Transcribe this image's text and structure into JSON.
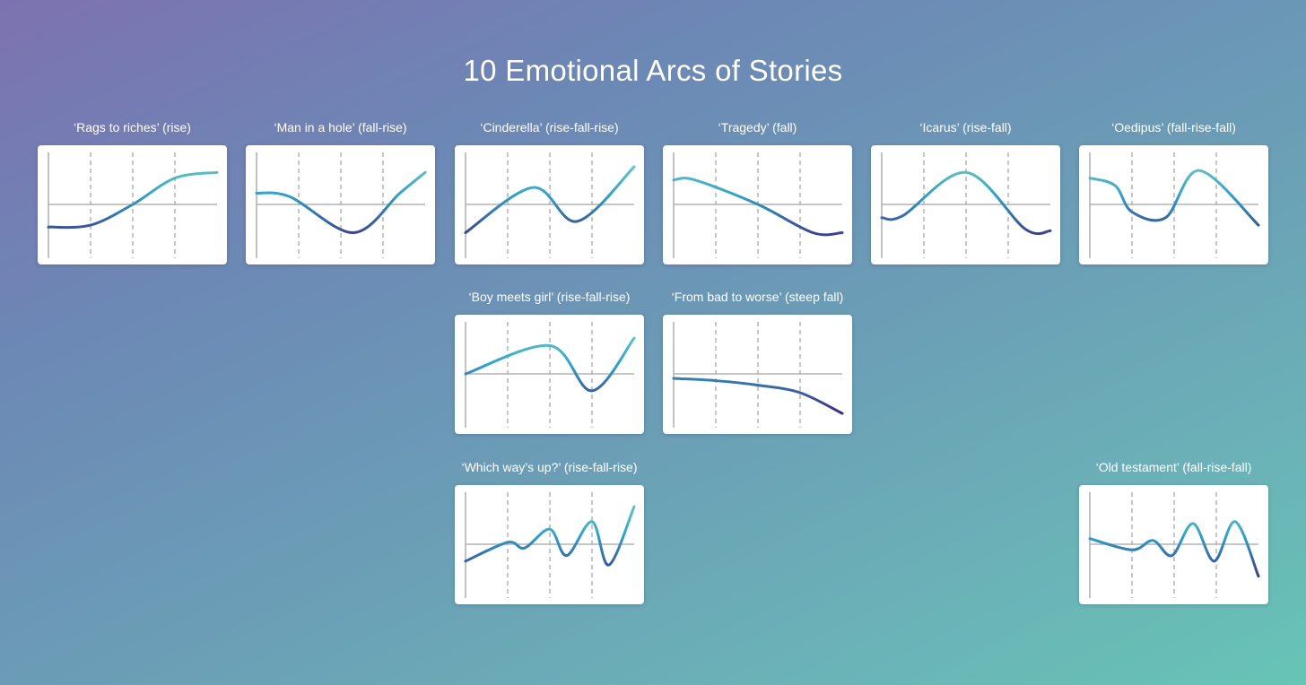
{
  "title": "10 Emotional Arcs of Stories",
  "colors": {
    "curve_high": "#5ec6c2",
    "curve_mid": "#2aa3cf",
    "curve_low": "#3c2f8c",
    "axis": "#b3b3b3",
    "grid": "#a8a8a8"
  },
  "chart_data": [
    {
      "type": "line",
      "title": "‘Rags to riches’ (rise)",
      "x": [
        0,
        1,
        2,
        3,
        4
      ],
      "y": [
        -0.6,
        -0.55,
        0,
        0.7,
        0.85
      ]
    },
    {
      "type": "line",
      "title": "‘Man in a hole’ (fall-rise)",
      "x": [
        0,
        0.8,
        2.3,
        3.4,
        4
      ],
      "y": [
        0.3,
        0.2,
        -0.75,
        0.3,
        0.85
      ]
    },
    {
      "type": "line",
      "title": "‘Cinderella’ (rise-fall-rise)",
      "x": [
        0,
        1.6,
        2.65,
        4
      ],
      "y": [
        -0.75,
        0.45,
        -0.45,
        1.0
      ]
    },
    {
      "type": "line",
      "title": "‘Tragedy’ (fall)",
      "x": [
        0,
        0.5,
        2,
        3.3,
        4
      ],
      "y": [
        0.65,
        0.65,
        0,
        -0.75,
        -0.75
      ]
    },
    {
      "type": "line",
      "title": "‘Icarus’ (rise-fall)",
      "x": [
        0,
        0.5,
        2,
        3.4,
        4
      ],
      "y": [
        -0.35,
        -0.3,
        0.85,
        -0.65,
        -0.7
      ]
    },
    {
      "type": "line",
      "title": "‘Oedipus’ (fall-rise-fall)",
      "x": [
        0,
        0.6,
        1.0,
        1.8,
        2.6,
        4
      ],
      "y": [
        0.7,
        0.5,
        -0.2,
        -0.35,
        0.9,
        -0.55
      ]
    },
    {
      "type": "line",
      "title": "‘Boy meets girl’ (rise-fall-rise)",
      "x": [
        0,
        2.0,
        3.0,
        4
      ],
      "y": [
        0,
        0.75,
        -0.45,
        0.95
      ]
    },
    {
      "type": "line",
      "title": "‘From bad to worse’ (steep fall)",
      "x": [
        0,
        1,
        2,
        3,
        4
      ],
      "y": [
        -0.12,
        -0.18,
        -0.3,
        -0.5,
        -1.05
      ]
    },
    {
      "type": "line",
      "title": "‘Which way’s up?’ (rise-fall-rise)",
      "x": [
        0,
        1.0,
        1.4,
        2.0,
        2.4,
        3.0,
        3.4,
        4
      ],
      "y": [
        -0.45,
        0.05,
        -0.1,
        0.4,
        -0.3,
        0.6,
        -0.55,
        1.0
      ]
    },
    {
      "type": "line",
      "title": "‘Old testament’ (fall-rise-fall)",
      "x": [
        0,
        1.0,
        1.5,
        1.95,
        2.45,
        2.95,
        3.45,
        4
      ],
      "y": [
        0.15,
        -0.15,
        0.1,
        -0.3,
        0.55,
        -0.45,
        0.6,
        -0.85
      ]
    }
  ]
}
